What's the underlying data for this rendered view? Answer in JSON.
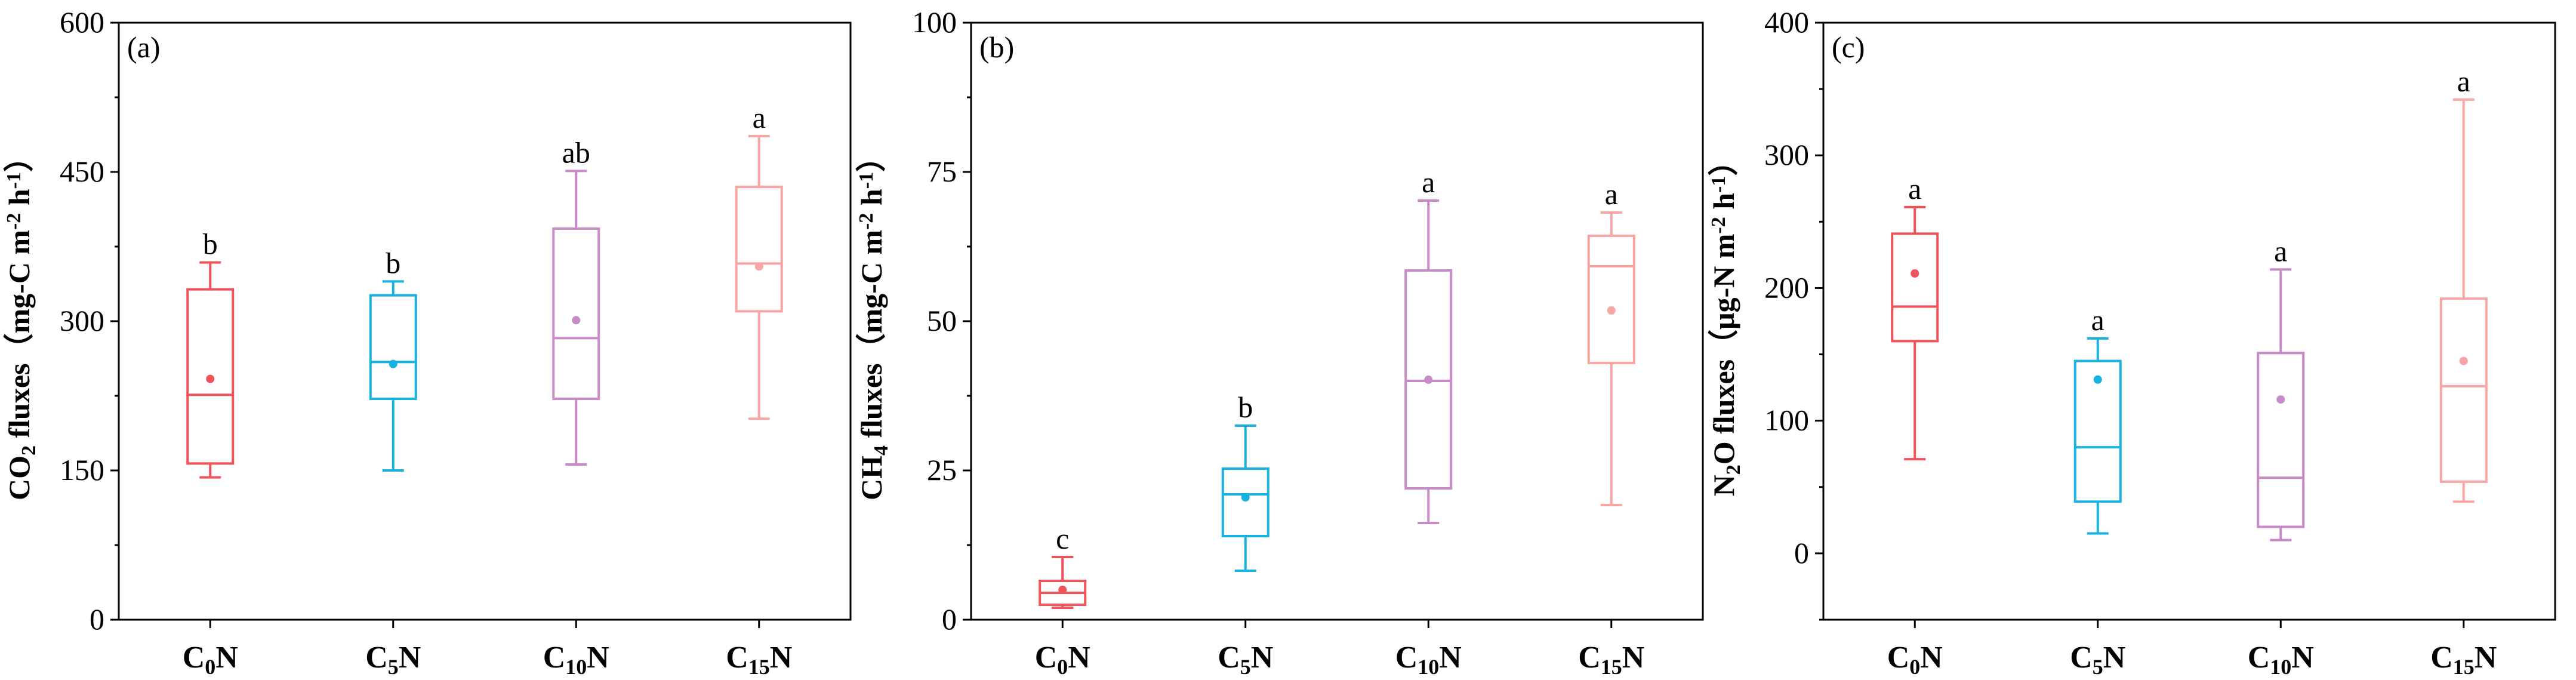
{
  "chart_data": [
    {
      "type": "box",
      "panel_label": "(a)",
      "ylabel": "CO2 fluxes（mg-C m-2 h-1）",
      "ylabel_parts": [
        {
          "t": "CO",
          "s": "base"
        },
        {
          "t": "2",
          "s": "sub"
        },
        {
          "t": " fluxes（mg-C m",
          "s": "base"
        },
        {
          "t": "-2",
          "s": "sup"
        },
        {
          "t": " h",
          "s": "base"
        },
        {
          "t": "-1",
          "s": "sup"
        },
        {
          "t": "）",
          "s": "base"
        }
      ],
      "ylim": [
        0,
        600
      ],
      "yticks": [
        0,
        150,
        300,
        450,
        600
      ],
      "categories": [
        "C0N",
        "C5N",
        "C10N",
        "C15N"
      ],
      "boxes": [
        {
          "whisker_low": 143,
          "q1": 157,
          "median": 226,
          "q3": 332,
          "whisker_high": 359,
          "mean": 242,
          "letter": "b"
        },
        {
          "whisker_low": 150,
          "q1": 222,
          "median": 259,
          "q3": 326,
          "whisker_high": 340,
          "mean": 257,
          "letter": "b"
        },
        {
          "whisker_low": 156,
          "q1": 222,
          "median": 283,
          "q3": 393,
          "whisker_high": 451,
          "mean": 301,
          "letter": "ab"
        },
        {
          "whisker_low": 202,
          "q1": 310,
          "median": 358,
          "q3": 435,
          "whisker_high": 486,
          "mean": 355,
          "letter": "a"
        }
      ]
    },
    {
      "type": "box",
      "panel_label": "(b)",
      "ylabel": "CH4 fluxes（mg-C m-2 h-1）",
      "ylabel_parts": [
        {
          "t": "CH",
          "s": "base"
        },
        {
          "t": "4",
          "s": "sub"
        },
        {
          "t": " fluxes（mg-C m",
          "s": "base"
        },
        {
          "t": "-2",
          "s": "sup"
        },
        {
          "t": " h",
          "s": "base"
        },
        {
          "t": "-1",
          "s": "sup"
        },
        {
          "t": "）",
          "s": "base"
        }
      ],
      "ylim": [
        0,
        100
      ],
      "yticks": [
        0,
        25,
        50,
        75,
        100
      ],
      "categories": [
        "C0N",
        "C5N",
        "C10N",
        "C15N"
      ],
      "boxes": [
        {
          "whisker_low": 2,
          "q1": 2.5,
          "median": 4.5,
          "q3": 6.5,
          "whisker_high": 10.5,
          "mean": 5,
          "letter": "c"
        },
        {
          "whisker_low": 8.2,
          "q1": 14,
          "median": 21,
          "q3": 25.3,
          "whisker_high": 32.5,
          "mean": 20.5,
          "letter": "b"
        },
        {
          "whisker_low": 16.2,
          "q1": 22,
          "median": 40,
          "q3": 58.5,
          "whisker_high": 70.2,
          "mean": 40.2,
          "letter": "a"
        },
        {
          "whisker_low": 19.2,
          "q1": 43,
          "median": 59.2,
          "q3": 64.3,
          "whisker_high": 68.2,
          "mean": 51.8,
          "letter": "a"
        }
      ]
    },
    {
      "type": "box",
      "panel_label": "(c)",
      "ylabel": "N2O fluxes（μg-N m-2 h-1）",
      "ylabel_parts": [
        {
          "t": "N",
          "s": "base"
        },
        {
          "t": "2",
          "s": "sub"
        },
        {
          "t": "O fluxes（μg-N m",
          "s": "base"
        },
        {
          "t": "-2",
          "s": "sup"
        },
        {
          "t": " h",
          "s": "base"
        },
        {
          "t": "-1",
          "s": "sup"
        },
        {
          "t": "）",
          "s": "base"
        }
      ],
      "ylim": [
        -50,
        400
      ],
      "yticks": [
        0,
        100,
        200,
        300,
        400
      ],
      "categories": [
        "C0N",
        "C5N",
        "C10N",
        "C15N"
      ],
      "boxes": [
        {
          "whisker_low": 71,
          "q1": 160,
          "median": 186,
          "q3": 241,
          "whisker_high": 261,
          "mean": 211,
          "letter": "a"
        },
        {
          "whisker_low": 15,
          "q1": 39,
          "median": 80,
          "q3": 145,
          "whisker_high": 162,
          "mean": 131,
          "letter": "a"
        },
        {
          "whisker_low": 10,
          "q1": 20,
          "median": 57,
          "q3": 151,
          "whisker_high": 214,
          "mean": 116,
          "letter": "a"
        },
        {
          "whisker_low": 39,
          "q1": 54,
          "median": 126,
          "q3": 192,
          "whisker_high": 342,
          "mean": 145,
          "letter": "a"
        }
      ]
    }
  ],
  "category_labels": [
    {
      "base": "C",
      "sub": "0",
      "tail": "N"
    },
    {
      "base": "C",
      "sub": "5",
      "tail": "N"
    },
    {
      "base": "C",
      "sub": "10",
      "tail": "N"
    },
    {
      "base": "C",
      "sub": "15",
      "tail": "N"
    }
  ],
  "colors": {
    "C0N": "#f0525a",
    "C5N": "#17b2e0",
    "C10N": "#c98bc8",
    "C15N": "#f7a6a4",
    "axis": "#000000"
  }
}
